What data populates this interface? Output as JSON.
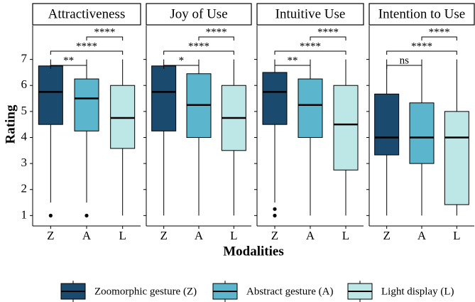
{
  "chart_data": {
    "type": "box",
    "y_label": "Rating",
    "x_label": "Modalities",
    "categories": [
      "Z",
      "A",
      "L"
    ],
    "ylim": [
      0.6,
      8.3
    ],
    "yticks": [
      1,
      2,
      3,
      4,
      5,
      6,
      7
    ],
    "series": [
      {
        "name": "Zoomorphic gesture (Z)",
        "color": "#1a4a6e"
      },
      {
        "name": "Abstract gesture (A)",
        "color": "#5bb5cc"
      },
      {
        "name": "Light display (L)",
        "color": "#bde6e6"
      }
    ],
    "facets": [
      {
        "title": "Attractiveness",
        "boxes": [
          {
            "min": 1.5,
            "q1": 4.5,
            "median": 5.75,
            "q3": 6.75,
            "max": 7,
            "outliers": [
              1
            ]
          },
          {
            "min": 1.5,
            "q1": 4.25,
            "median": 5.5,
            "q3": 6.25,
            "max": 7,
            "outliers": [
              1
            ]
          },
          {
            "min": 1,
            "q1": 3.58,
            "median": 4.75,
            "q3": 6,
            "max": 7,
            "outliers": []
          }
        ],
        "brackets": [
          {
            "groups": [
              "Z",
              "A"
            ],
            "label": "**"
          },
          {
            "groups": [
              "Z",
              "L"
            ],
            "label": "****"
          },
          {
            "groups": [
              "A",
              "L"
            ],
            "label": "****"
          }
        ]
      },
      {
        "title": "Joy of Use",
        "boxes": [
          {
            "min": 1,
            "q1": 4.25,
            "median": 5.75,
            "q3": 6.75,
            "max": 7,
            "outliers": []
          },
          {
            "min": 1,
            "q1": 4,
            "median": 5.25,
            "q3": 6.45,
            "max": 7,
            "outliers": []
          },
          {
            "min": 1,
            "q1": 3.5,
            "median": 4.75,
            "q3": 6,
            "max": 7,
            "outliers": []
          }
        ],
        "brackets": [
          {
            "groups": [
              "Z",
              "A"
            ],
            "label": "*"
          },
          {
            "groups": [
              "Z",
              "L"
            ],
            "label": "****"
          },
          {
            "groups": [
              "A",
              "L"
            ],
            "label": "****"
          }
        ]
      },
      {
        "title": "Intuitive Use",
        "boxes": [
          {
            "min": 1.5,
            "q1": 4.5,
            "median": 5.75,
            "q3": 6.5,
            "max": 7,
            "outliers": [
              1,
              1.25
            ]
          },
          {
            "min": 1,
            "q1": 4,
            "median": 5.25,
            "q3": 6.25,
            "max": 7,
            "outliers": []
          },
          {
            "min": 1,
            "q1": 2.75,
            "median": 4.5,
            "q3": 6,
            "max": 7,
            "outliers": []
          }
        ],
        "brackets": [
          {
            "groups": [
              "Z",
              "A"
            ],
            "label": "**"
          },
          {
            "groups": [
              "Z",
              "L"
            ],
            "label": "****"
          },
          {
            "groups": [
              "A",
              "L"
            ],
            "label": "****"
          }
        ]
      },
      {
        "title": "Intention to Use",
        "boxes": [
          {
            "min": 1,
            "q1": 3.33,
            "median": 4,
            "q3": 5.67,
            "max": 7,
            "outliers": []
          },
          {
            "min": 1,
            "q1": 3,
            "median": 4,
            "q3": 5.33,
            "max": 7,
            "outliers": []
          },
          {
            "min": 1,
            "q1": 1.42,
            "median": 4,
            "q3": 5,
            "max": 7,
            "outliers": []
          }
        ],
        "brackets": [
          {
            "groups": [
              "Z",
              "A"
            ],
            "label": "ns"
          },
          {
            "groups": [
              "Z",
              "L"
            ],
            "label": "****"
          },
          {
            "groups": [
              "A",
              "L"
            ],
            "label": "****"
          }
        ]
      }
    ]
  }
}
